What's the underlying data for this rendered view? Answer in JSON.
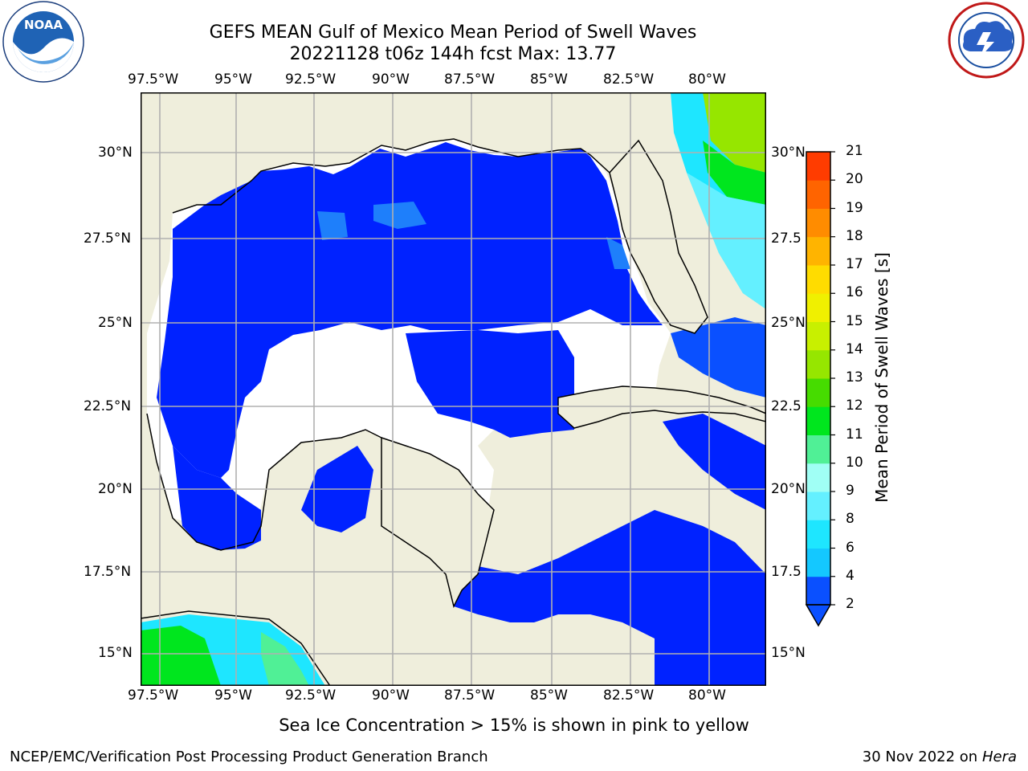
{
  "header": {
    "title_line1": "GEFS MEAN Gulf of Mexico Mean Period of Swell Waves",
    "title_line2": "20221128 t06z 144h fcst   Max: 13.77"
  },
  "logos": {
    "left_text": "NOAA",
    "left_ring_text": "NATIONAL OCEANIC AND ATMOSPHERIC ADMINISTRATION · U.S. DEPARTMENT OF COMMERCE",
    "right_ring_text": "NATIONAL WEATHER SERVICE"
  },
  "map": {
    "lon_ticks": [
      "97.5°W",
      "95°W",
      "92.5°W",
      "90°W",
      "87.5°W",
      "85°W",
      "82.5°W",
      "80°W"
    ],
    "lat_ticks_left": [
      "30°N",
      "27.5°N",
      "25°N",
      "22.5°N",
      "20°N",
      "17.5°N",
      "15°N"
    ],
    "lat_ticks_right": [
      "30°N",
      "27.5",
      "25°N",
      "22.5",
      "20°N",
      "17.5",
      "15°N"
    ],
    "colors": {
      "land": "#efeedc",
      "ocean_low": "#0022ff",
      "ocean_mid": "#1e7ffb",
      "grid": "#b0b0b0"
    }
  },
  "colorbar": {
    "label": "Mean Period of Swell Waves [s]",
    "ticks": [
      "2",
      "4",
      "6",
      "8",
      "9",
      "10",
      "11",
      "12",
      "13",
      "14",
      "15",
      "16",
      "17",
      "18",
      "19",
      "20",
      "21"
    ],
    "colors": [
      "#0a50ff",
      "#14c8ff",
      "#1ee6ff",
      "#64f0ff",
      "#a0fff5",
      "#50f096",
      "#00e61e",
      "#46dc00",
      "#96e600",
      "#c8f000",
      "#f0f000",
      "#ffdc00",
      "#ffb400",
      "#ff8c00",
      "#ff6400",
      "#ff3c00",
      "#ff0000"
    ]
  },
  "footer": {
    "note": "Sea Ice Concentration > 15% is shown in pink to yellow",
    "left": "NCEP/EMC/Verification Post Processing Product Generation Branch",
    "date": "30 Nov 2022 on",
    "system": "Hera"
  }
}
